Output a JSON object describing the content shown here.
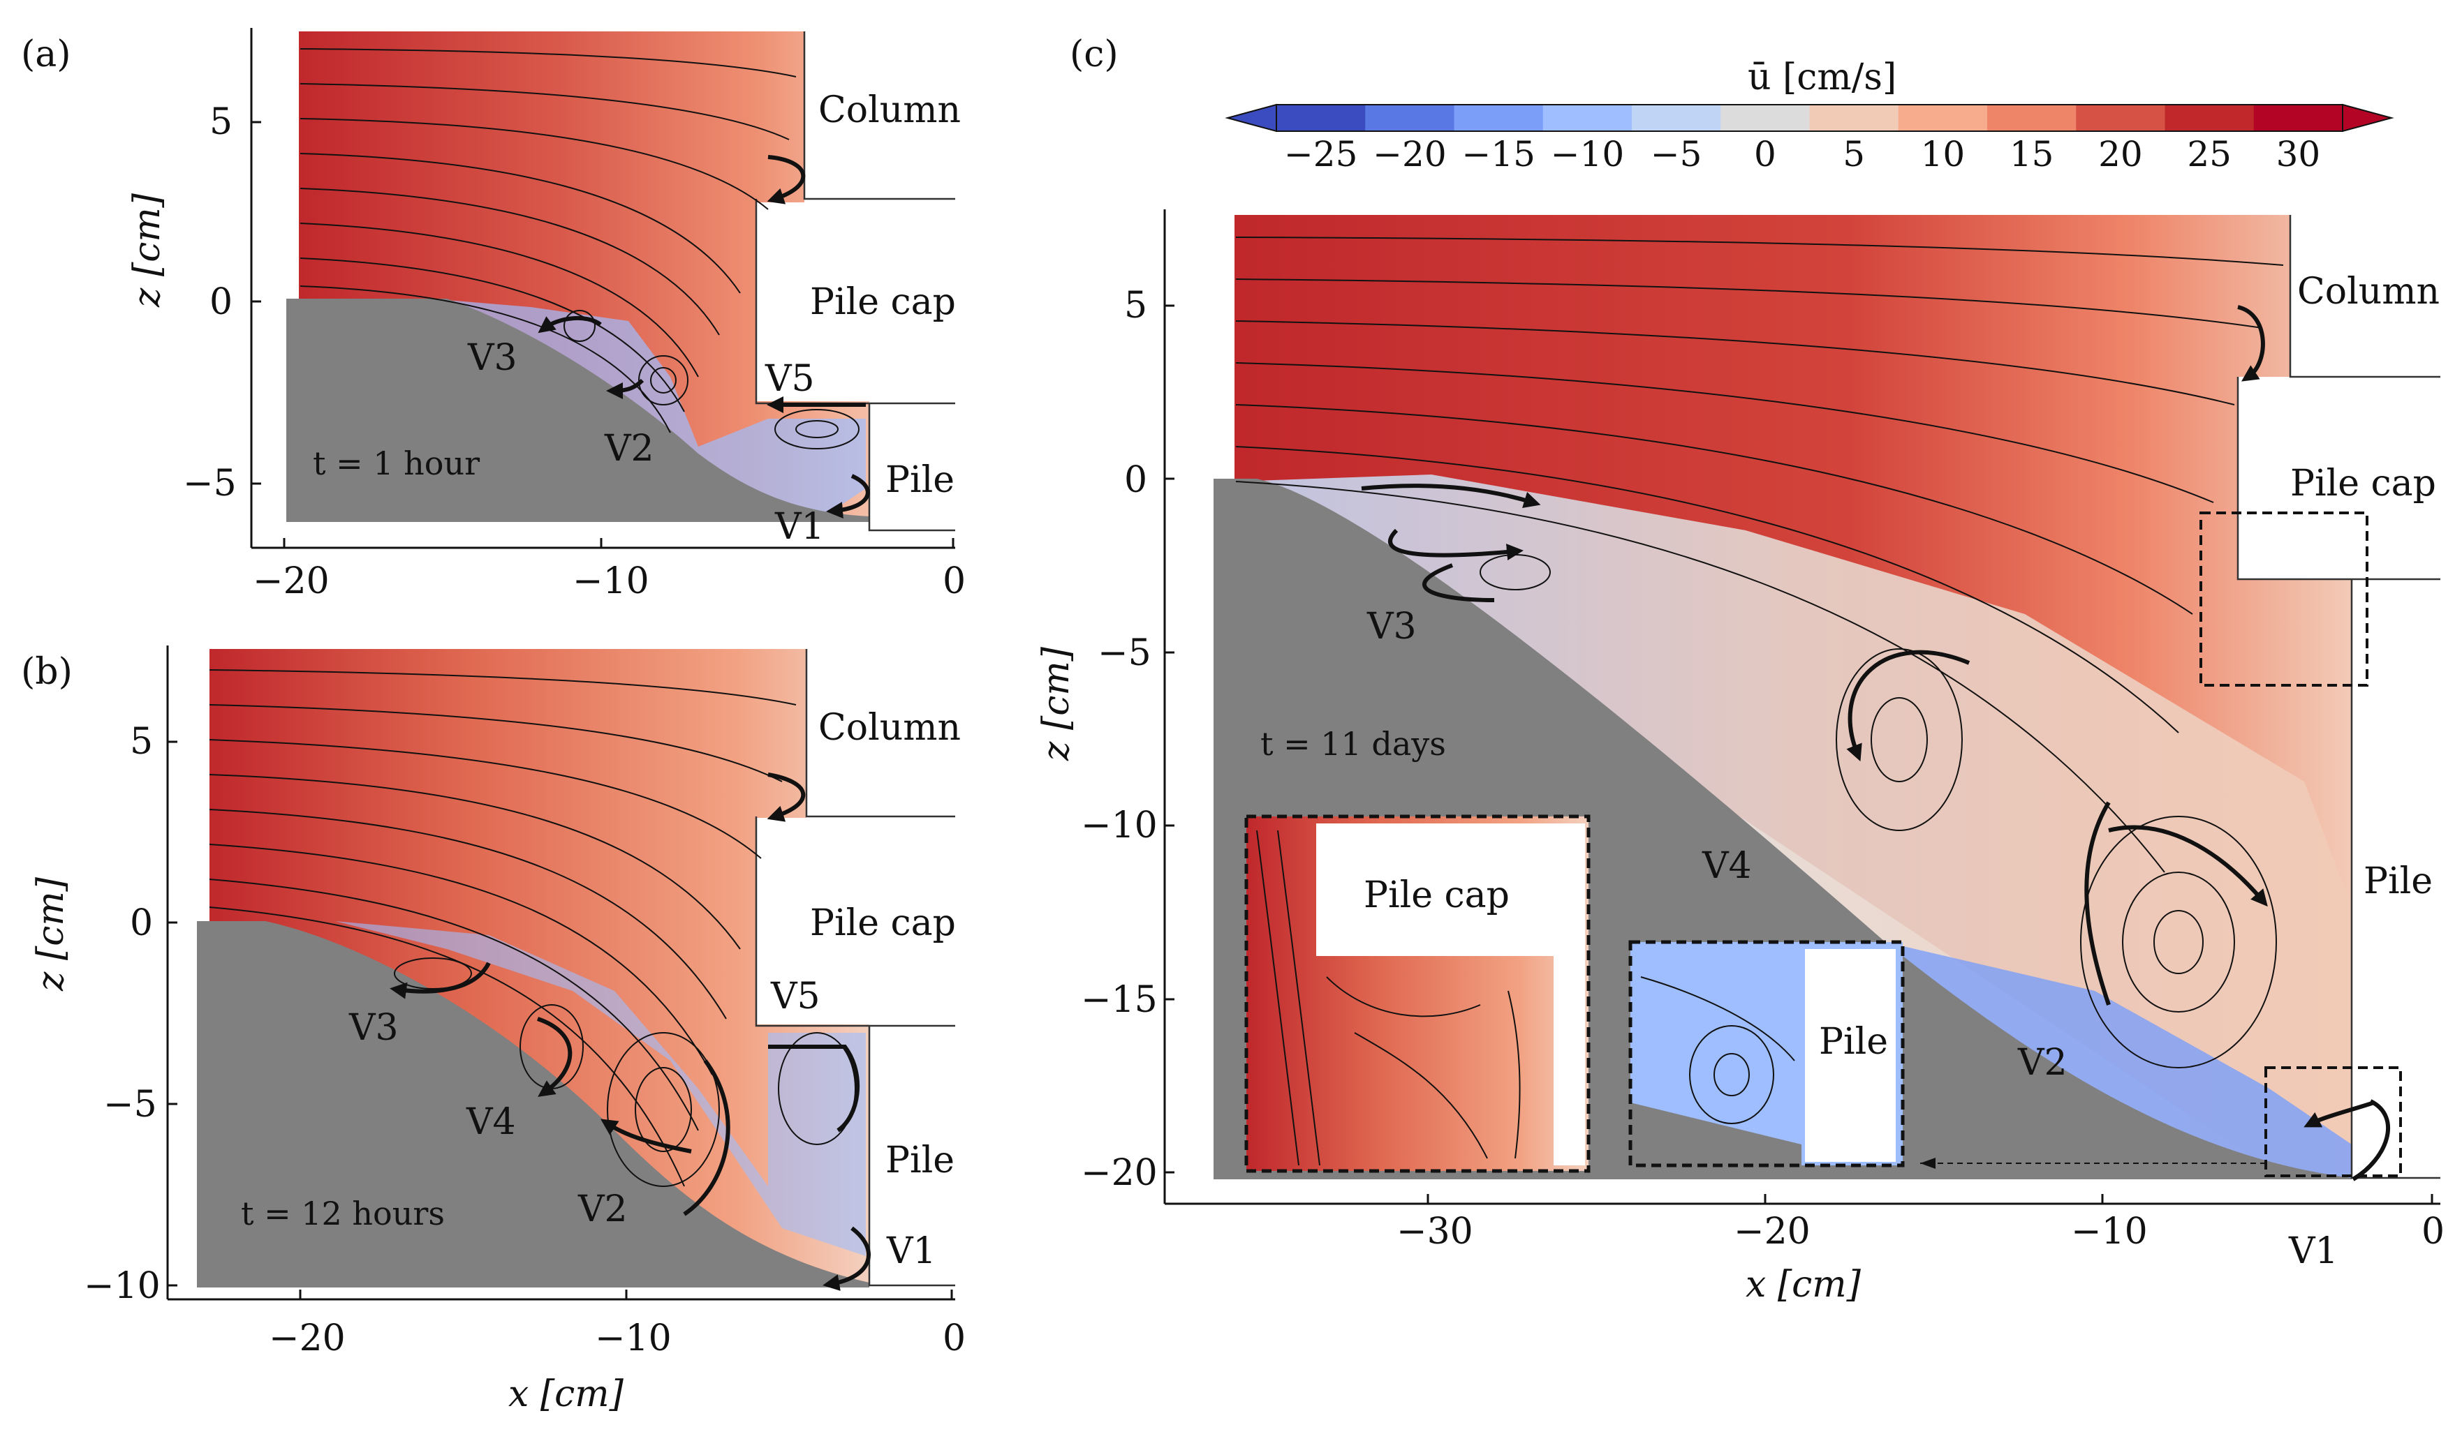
{
  "chart_data": [
    {
      "type": "streamplot",
      "panel": "(a)",
      "xlim": [
        -20,
        0
      ],
      "ylim": [
        -5,
        5
      ],
      "xticks": [
        -20,
        -10,
        0
      ],
      "yticks": [
        -5,
        0,
        5
      ],
      "xlabel": "",
      "ylabel": "z [cm]",
      "time_label": "t = 1 hour",
      "structures": [
        "Column",
        "Pile cap",
        "Pile"
      ],
      "vortices": [
        "V3",
        "V2",
        "V5",
        "V1"
      ]
    },
    {
      "type": "streamplot",
      "panel": "(b)",
      "xlim": [
        -20,
        0
      ],
      "ylim": [
        -10,
        5
      ],
      "xticks": [
        -20,
        -10,
        0
      ],
      "yticks": [
        -10,
        -5,
        0,
        5
      ],
      "xlabel": "x [cm]",
      "ylabel": "z [cm]",
      "time_label": "t = 12 hours",
      "structures": [
        "Column",
        "Pile cap",
        "Pile"
      ],
      "vortices": [
        "V3",
        "V4",
        "V2",
        "V5",
        "V1"
      ]
    },
    {
      "type": "streamplot",
      "panel": "(c)",
      "xlim": [
        -30,
        0
      ],
      "ylim": [
        -20,
        5
      ],
      "xticks": [
        -30,
        -20,
        -10,
        0
      ],
      "yticks": [
        -20,
        -15,
        -10,
        -5,
        0,
        5
      ],
      "xlabel": "x [cm]",
      "ylabel": "z [cm]",
      "time_label": "t = 11 days",
      "structures": [
        "Column",
        "Pile cap",
        "Pile"
      ],
      "vortices": [
        "V3",
        "V4",
        "V2",
        "V1"
      ],
      "insets": [
        "Pile cap",
        "Pile"
      ]
    }
  ],
  "colorbar": {
    "label": "ū [cm/s]",
    "ticks": [
      -25,
      -20,
      -15,
      -10,
      -5,
      0,
      5,
      10,
      15,
      20,
      25,
      30
    ],
    "tick_labels": [
      "−25",
      "−20",
      "−15",
      "−10",
      "−5",
      "0",
      "5",
      "10",
      "15",
      "20",
      "25",
      "30"
    ],
    "colors": [
      "#3b4cc0",
      "#5a78e4",
      "#7b9ff9",
      "#9ebeff",
      "#c0d4f5",
      "#dddcdc",
      "#f2cbb7",
      "#f7ac8e",
      "#ee8468",
      "#d65244",
      "#c0282c",
      "#b40426"
    ]
  },
  "bed_color": "#808080"
}
